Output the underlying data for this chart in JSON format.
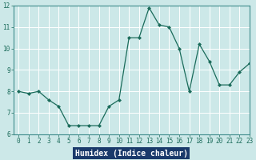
{
  "x": [
    0,
    1,
    2,
    3,
    4,
    5,
    6,
    7,
    8,
    9,
    10,
    11,
    12,
    13,
    14,
    15,
    16,
    17,
    18,
    19,
    20,
    21,
    22,
    23
  ],
  "y": [
    8.0,
    7.9,
    8.0,
    7.6,
    7.3,
    6.4,
    6.4,
    6.4,
    6.4,
    7.3,
    7.6,
    10.5,
    10.5,
    11.9,
    11.1,
    11.0,
    10.0,
    8.0,
    10.2,
    9.4,
    8.3,
    8.3,
    8.9,
    9.3
  ],
  "xlabel": "Humidex (Indice chaleur)",
  "ylim": [
    6,
    12
  ],
  "xlim": [
    -0.5,
    23
  ],
  "yticks": [
    6,
    7,
    8,
    9,
    10,
    11,
    12
  ],
  "xticks": [
    0,
    1,
    2,
    3,
    4,
    5,
    6,
    7,
    8,
    9,
    10,
    11,
    12,
    13,
    14,
    15,
    16,
    17,
    18,
    19,
    20,
    21,
    22,
    23
  ],
  "line_color": "#1a6b5a",
  "marker": "D",
  "marker_size": 2.0,
  "bg_color": "#cce8e8",
  "grid_color": "#ffffff",
  "bottom_bar_color": "#1a3a6b",
  "bottom_bar_text_color": "#ffffff",
  "spine_color": "#3d8b8b",
  "tick_color": "#1a6b5a"
}
